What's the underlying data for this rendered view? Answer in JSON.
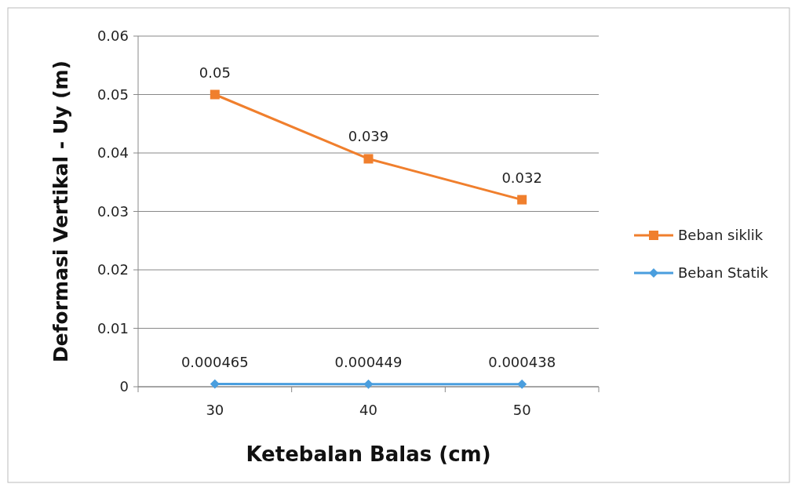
{
  "chart_data": {
    "type": "line",
    "xlabel": "Ketebalan Balas (cm)",
    "ylabel": "Deformasi Vertikal - Uy (m)",
    "categories": [
      "30",
      "40",
      "50"
    ],
    "series": [
      {
        "name": "Beban siklik",
        "color": "#f07f2d",
        "values": [
          0.05,
          0.039,
          0.032
        ],
        "marker": "square"
      },
      {
        "name": "Beban Statik",
        "color": "#4a9ede",
        "values": [
          0.000465,
          0.000449,
          0.000438
        ],
        "marker": "diamond"
      }
    ],
    "ylim": [
      0,
      0.06
    ],
    "yticks": [
      0,
      0.01,
      0.02,
      0.03,
      0.04,
      0.05,
      0.06
    ],
    "grid": "y",
    "legend": "right",
    "data_labels": true,
    "line_style": "solid"
  }
}
